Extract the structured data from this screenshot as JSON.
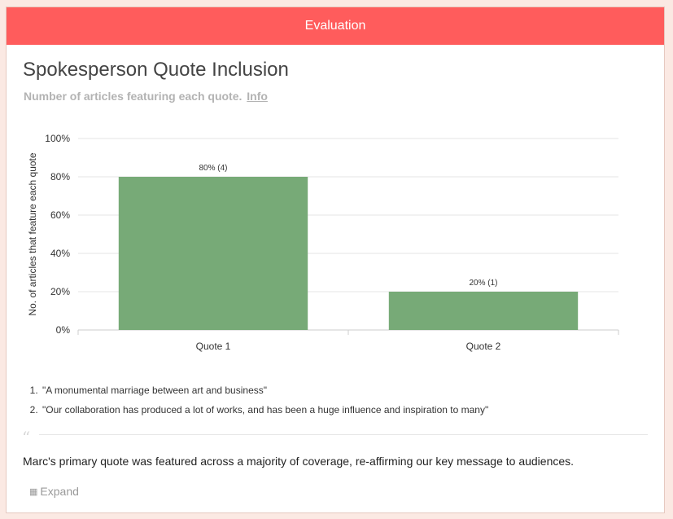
{
  "header": {
    "title": "Evaluation"
  },
  "card": {
    "title": "Spokesperson Quote Inclusion",
    "subtitle": "Number of articles featuring each quote.",
    "info_link": "Info"
  },
  "chart_data": {
    "type": "bar",
    "categories": [
      "Quote 1",
      "Quote 2"
    ],
    "values": [
      80,
      20
    ],
    "data_labels": [
      "80% (4)",
      "20% (1)"
    ],
    "ylabel": "No. of articles that feature each quote",
    "xlabel": "",
    "ylim": [
      0,
      100
    ],
    "yticks": [
      "0%",
      "20%",
      "40%",
      "60%",
      "80%",
      "100%"
    ],
    "grid": true,
    "bar_color": "#77aa77"
  },
  "quotes": [
    "\"A monumental marriage between art and business\"",
    "\"Our collaboration has produced a lot of works, and has been a huge influence and inspiration to many\""
  ],
  "summary": "Marc's primary quote was featured across a majority of coverage, re-affirming our key message to audiences.",
  "expand": {
    "label": "Expand",
    "icon": "expand-icon"
  },
  "colors": {
    "header_bg": "#ff5c5c",
    "bar": "#77aa77",
    "page_bg": "#fbe9e3"
  }
}
